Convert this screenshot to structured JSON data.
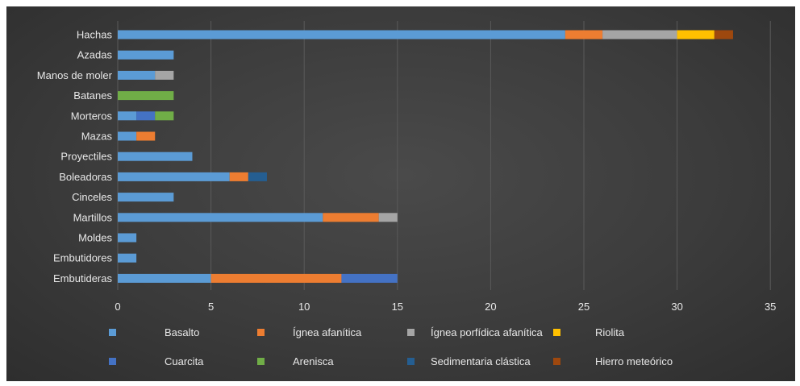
{
  "chart_data": {
    "type": "bar",
    "orientation": "horizontal",
    "stacked": true,
    "categories": [
      "Hachas",
      "Azadas",
      "Manos de moler",
      "Batanes",
      "Morteros",
      "Mazas",
      "Proyectiles",
      "Boleadoras",
      "Cinceles",
      "Martillos",
      "Moldes",
      "Embutidores",
      "Embutideras"
    ],
    "series": [
      {
        "name": "Basalto",
        "color": "#5b9bd5",
        "values": [
          24,
          3,
          2,
          0,
          1,
          1,
          4,
          6,
          3,
          11,
          1,
          1,
          5
        ]
      },
      {
        "name": "Ígnea afanítica",
        "color": "#ed7d31",
        "values": [
          2,
          0,
          0,
          0,
          0,
          1,
          0,
          1,
          0,
          3,
          0,
          0,
          7
        ]
      },
      {
        "name": "Ígnea porfídica afanítica",
        "color": "#a5a5a5",
        "values": [
          4,
          0,
          1,
          0,
          0,
          0,
          0,
          0,
          0,
          1,
          0,
          0,
          0
        ]
      },
      {
        "name": "Riolita",
        "color": "#ffc000",
        "values": [
          2,
          0,
          0,
          0,
          0,
          0,
          0,
          0,
          0,
          0,
          0,
          0,
          0
        ]
      },
      {
        "name": "Cuarcita",
        "color": "#4472c4",
        "values": [
          0,
          0,
          0,
          0,
          1,
          0,
          0,
          0,
          0,
          0,
          0,
          0,
          3
        ]
      },
      {
        "name": "Arenisca",
        "color": "#70ad47",
        "values": [
          0,
          0,
          0,
          3,
          1,
          0,
          0,
          0,
          0,
          0,
          0,
          0,
          0
        ]
      },
      {
        "name": "Sedimentaria clástica",
        "color": "#255e91",
        "values": [
          0,
          0,
          0,
          0,
          0,
          0,
          0,
          1,
          0,
          0,
          0,
          0,
          0
        ]
      },
      {
        "name": "Hierro meteórico",
        "color": "#9e480e",
        "values": [
          1,
          0,
          0,
          0,
          0,
          0,
          0,
          0,
          0,
          0,
          0,
          0,
          0
        ]
      }
    ],
    "xlim": [
      0,
      35
    ],
    "xticks": [
      0,
      5,
      10,
      15,
      20,
      25,
      30,
      35
    ],
    "grid": true,
    "legend_position": "bottom",
    "title": "",
    "xlabel": "",
    "ylabel": "",
    "background": "#3c3c3c",
    "text_color": "#e8e8e8",
    "gridline_color": "#5a5a5a"
  }
}
